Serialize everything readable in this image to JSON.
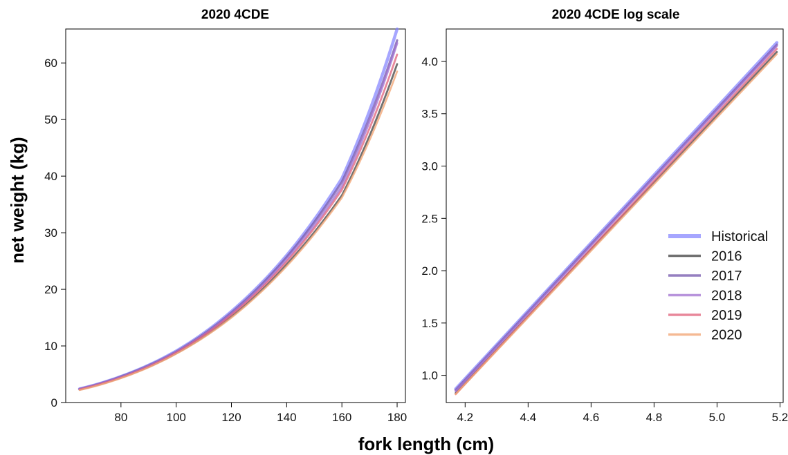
{
  "colors": {
    "Historical": "#8080ff",
    "2016": "#4d4d4d",
    "2017": "#7a5fb0",
    "2018": "#a070d0",
    "2019": "#e0607a",
    "2020": "#f2a878"
  },
  "shared_labels": {
    "xlabel": "fork length (cm)",
    "ylabel": "net weight (kg)"
  },
  "chart_data": [
    {
      "type": "line",
      "title": "2020 4CDE",
      "xlim": [
        60,
        183
      ],
      "ylim": [
        0,
        66
      ],
      "x_ticks": [
        "80",
        "100",
        "120",
        "140",
        "160",
        "180"
      ],
      "y_ticks": [
        "0",
        "10",
        "20",
        "30",
        "40",
        "50",
        "60"
      ],
      "series": [
        {
          "name": "Historical",
          "x": [
            65,
            80,
            100,
            120,
            140,
            160,
            180
          ],
          "y": [
            2.4,
            4.6,
            9.1,
            16.1,
            26.0,
            39.6,
            66.0
          ]
        },
        {
          "name": "2016",
          "x": [
            65,
            80,
            100,
            120,
            140,
            160,
            180
          ],
          "y": [
            2.3,
            4.4,
            8.7,
            15.2,
            24.4,
            36.6,
            59.8
          ]
        },
        {
          "name": "2017",
          "x": [
            65,
            80,
            100,
            120,
            140,
            160,
            180
          ],
          "y": [
            2.4,
            4.6,
            9.0,
            15.9,
            25.7,
            39.0,
            64.0
          ]
        },
        {
          "name": "2018",
          "x": [
            65,
            80,
            100,
            120,
            140,
            160,
            180
          ],
          "y": [
            2.4,
            4.5,
            8.9,
            15.7,
            25.3,
            38.2,
            63.5
          ]
        },
        {
          "name": "2019",
          "x": [
            65,
            80,
            100,
            120,
            140,
            160,
            180
          ],
          "y": [
            2.3,
            4.4,
            8.8,
            15.5,
            24.9,
            37.6,
            61.5
          ]
        },
        {
          "name": "2020",
          "x": [
            65,
            80,
            100,
            120,
            140,
            160,
            180
          ],
          "y": [
            2.2,
            4.3,
            8.6,
            15.0,
            24.1,
            36.2,
            58.5
          ]
        }
      ]
    },
    {
      "type": "line",
      "title": "2020 4CDE log scale",
      "xlim": [
        4.14,
        5.21
      ],
      "ylim": [
        0.74,
        4.31
      ],
      "x_ticks": [
        "4.2",
        "4.4",
        "4.6",
        "4.8",
        "5.0",
        "5.2"
      ],
      "y_ticks": [
        "1.0",
        "1.5",
        "2.0",
        "2.5",
        "3.0",
        "3.5",
        "4.0"
      ],
      "series": [
        {
          "name": "Historical",
          "x": [
            4.17,
            5.19
          ],
          "y": [
            0.87,
            4.18
          ]
        },
        {
          "name": "2016",
          "x": [
            4.17,
            5.19
          ],
          "y": [
            0.83,
            4.09
          ]
        },
        {
          "name": "2017",
          "x": [
            4.17,
            5.19
          ],
          "y": [
            0.86,
            4.16
          ]
        },
        {
          "name": "2018",
          "x": [
            4.17,
            5.19
          ],
          "y": [
            0.85,
            4.15
          ]
        },
        {
          "name": "2019",
          "x": [
            4.17,
            5.19
          ],
          "y": [
            0.82,
            4.12
          ]
        },
        {
          "name": "2020",
          "x": [
            4.17,
            5.19
          ],
          "y": [
            0.82,
            4.07
          ]
        }
      ],
      "legend": {
        "placement": "right",
        "entries": [
          "Historical",
          "2016",
          "2017",
          "2018",
          "2019",
          "2020"
        ]
      }
    }
  ]
}
